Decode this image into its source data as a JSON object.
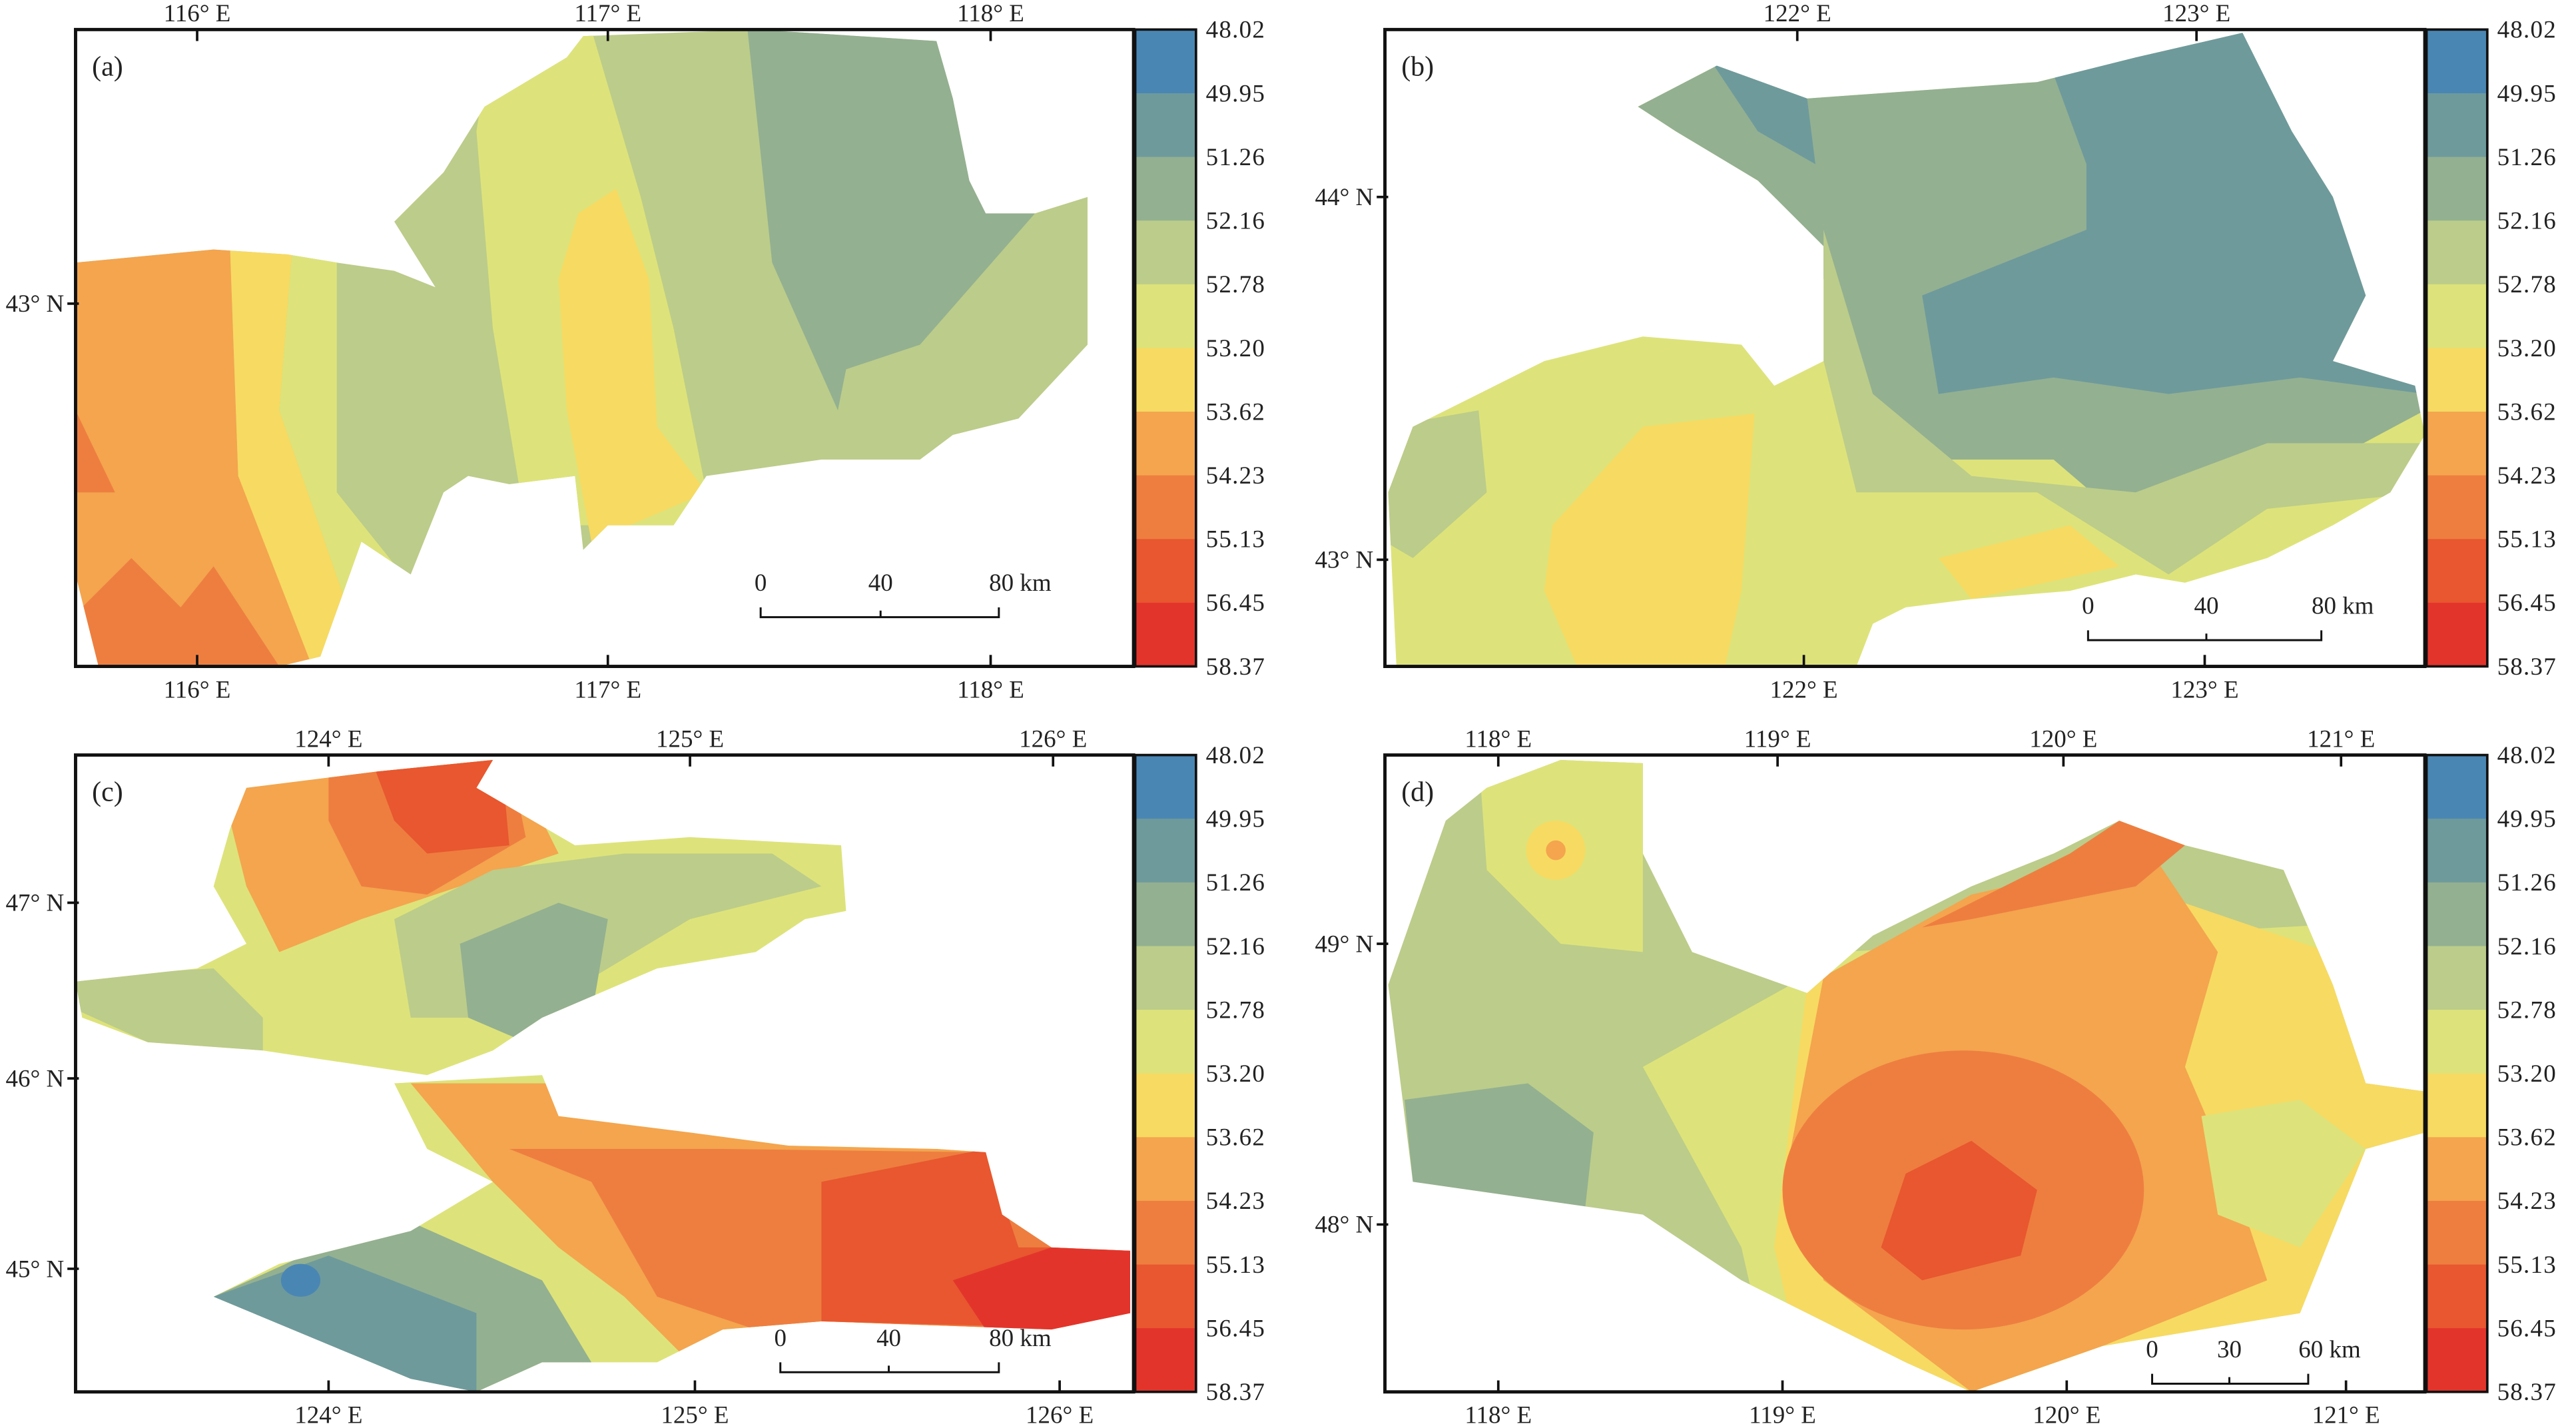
{
  "legend": {
    "values": [
      "48.02",
      "49.95",
      "51.26",
      "52.16",
      "52.78",
      "53.20",
      "53.62",
      "54.23",
      "55.13",
      "56.45",
      "58.37"
    ],
    "colors": [
      "#4a86b4",
      "#6e9a9c",
      "#93b091",
      "#bccc8a",
      "#dde37a",
      "#f7da62",
      "#f4a54e",
      "#ee7e40",
      "#e8572f",
      "#e3342c"
    ]
  },
  "panels": [
    {
      "label": "(a)",
      "top_ticks": [
        "116° E",
        "117° E",
        "118° E"
      ],
      "bottom_ticks": [
        "116° E",
        "117° E",
        "118° E"
      ],
      "left_ticks": [
        "43° N"
      ],
      "scale": [
        "0",
        "40",
        "80 km"
      ]
    },
    {
      "label": "(b)",
      "top_ticks": [
        "122° E",
        "123° E"
      ],
      "bottom_ticks": [
        "122° E",
        "123° E"
      ],
      "left_ticks": [
        "44° N",
        "43° N"
      ],
      "scale": [
        "0",
        "40",
        "80 km"
      ]
    },
    {
      "label": "(c)",
      "top_ticks": [
        "124° E",
        "125° E",
        "126° E"
      ],
      "bottom_ticks": [
        "124° E",
        "125° E",
        "126° E"
      ],
      "left_ticks": [
        "47° N",
        "46° N",
        "45° N"
      ],
      "scale": [
        "0",
        "40",
        "80 km"
      ]
    },
    {
      "label": "(d)",
      "top_ticks": [
        "118° E",
        "119° E",
        "120° E",
        "121° E"
      ],
      "bottom_ticks": [
        "118° E",
        "119° E",
        "120° E",
        "121° E"
      ],
      "left_ticks": [
        "49° N",
        "48° N"
      ],
      "scale": [
        "0",
        "30",
        "60 km"
      ]
    }
  ],
  "chart_data": {
    "type": "heatmap",
    "title": "",
    "colorbar_levels": [
      48.02,
      49.95,
      51.26,
      52.16,
      52.78,
      53.2,
      53.62,
      54.23,
      55.13,
      56.45,
      58.37
    ],
    "panels": [
      "(a)",
      "(b)",
      "(c)",
      "(d)"
    ]
  }
}
